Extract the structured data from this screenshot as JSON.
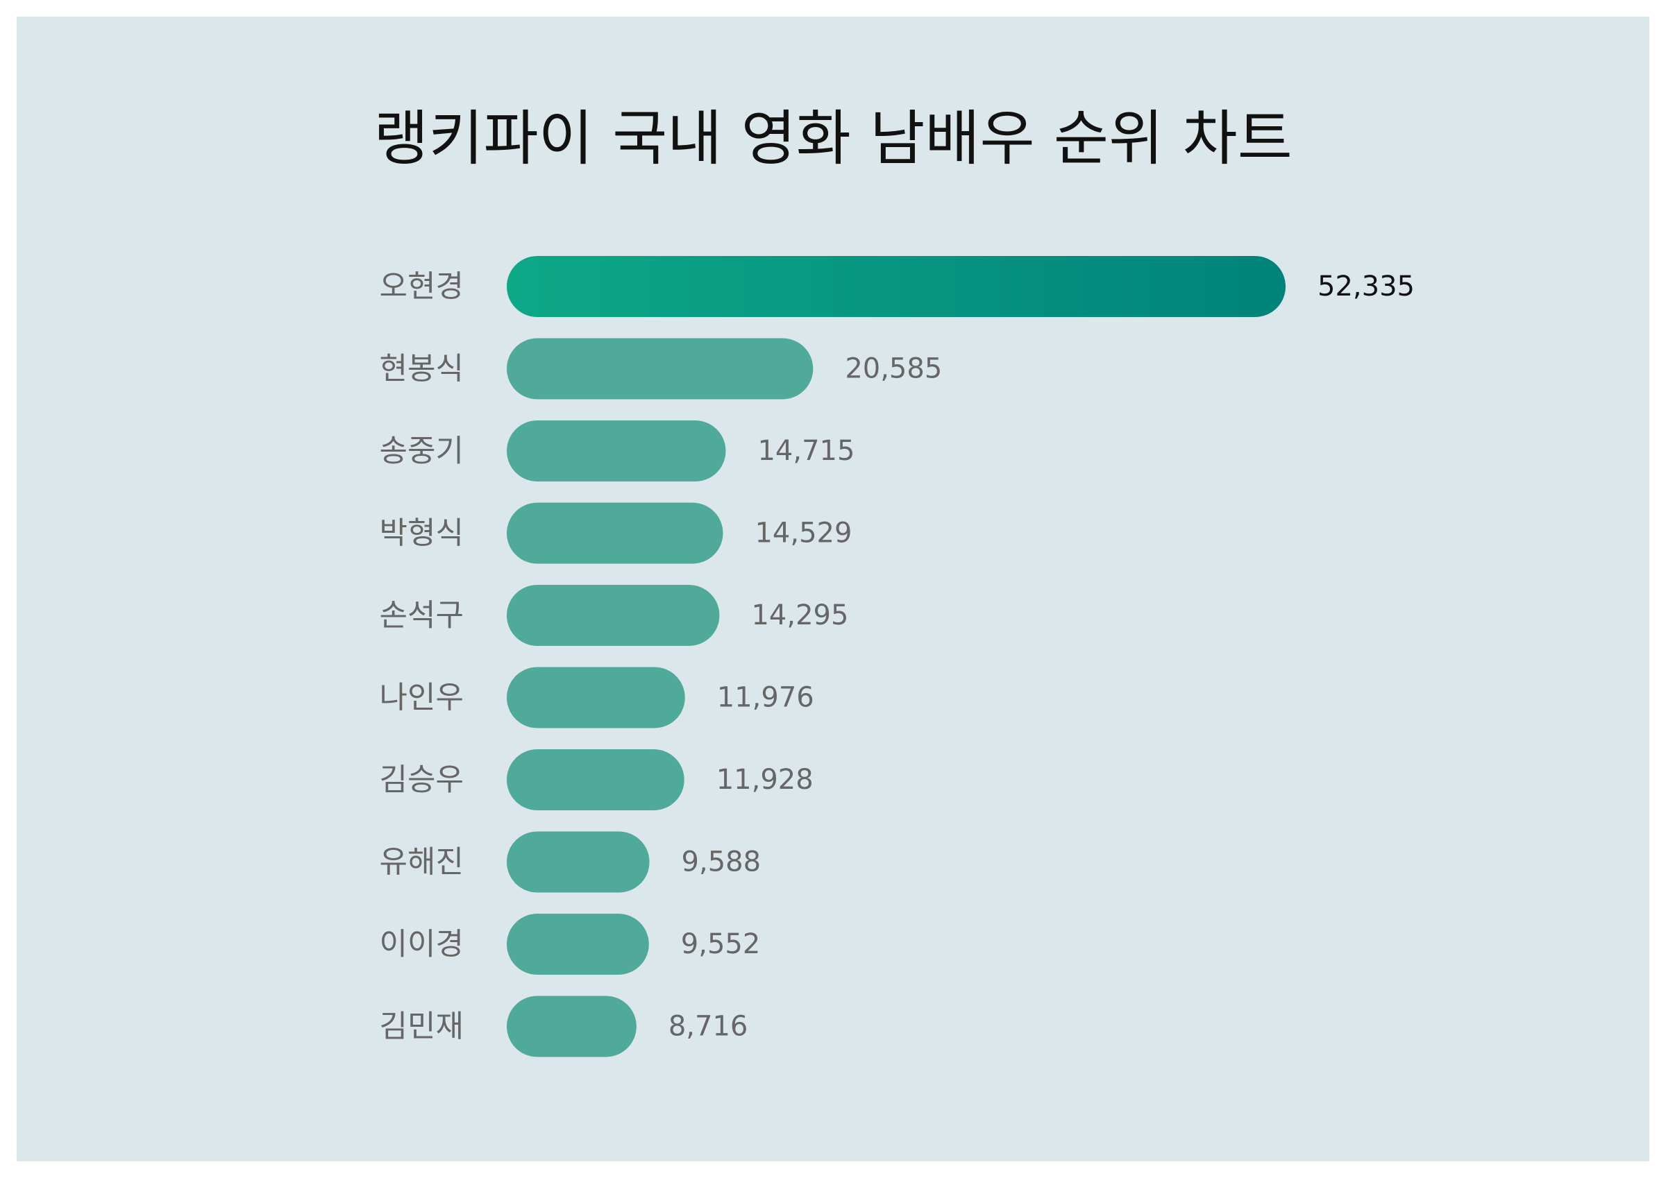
{
  "colors": {
    "background": "#dce7ec",
    "bar": "#50aa99",
    "top_bar_gradient_start": "#0da888",
    "top_bar_gradient_end": "#00837a",
    "label_text": "#666666",
    "top_value_text": "#111111"
  },
  "chart_data": {
    "type": "bar",
    "orientation": "horizontal",
    "title": "랭키파이 국내 영화 남배우 순위 차트",
    "categories": [
      "오현경",
      "현봉식",
      "송중기",
      "박형식",
      "손석구",
      "나인우",
      "김승우",
      "유해진",
      "이이경",
      "김민재"
    ],
    "values": [
      52335,
      20585,
      14715,
      14529,
      14295,
      11976,
      11928,
      9588,
      9552,
      8716
    ],
    "value_labels": [
      "52,335",
      "20,585",
      "14,715",
      "14,529",
      "14,295",
      "11,976",
      "11,928",
      "9,588",
      "9,552",
      "8,716"
    ],
    "xlim": [
      0,
      52335
    ],
    "grid": false,
    "legend": "none"
  }
}
